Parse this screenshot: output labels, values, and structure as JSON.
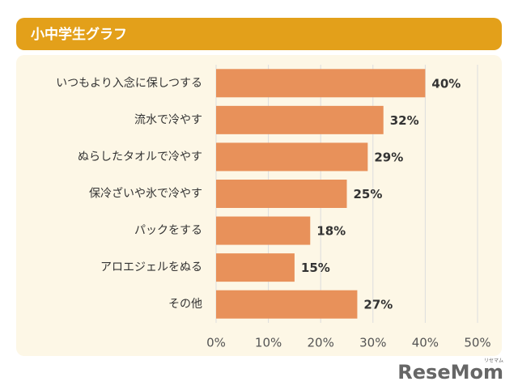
{
  "chart_data": {
    "type": "bar",
    "orientation": "horizontal",
    "title": "小中学生グラフ",
    "categories": [
      "いつもより入念に保しつする",
      "流水で冷やす",
      "ぬらしたタオルで冷やす",
      "保冷ざいや氷で冷やす",
      "パックをする",
      "アロエジェルをぬる",
      "その他"
    ],
    "values": [
      40,
      32,
      29,
      25,
      18,
      15,
      27
    ],
    "value_labels": [
      "40%",
      "32%",
      "29%",
      "25%",
      "18%",
      "15%",
      "27%"
    ],
    "color": "#e8915a",
    "xlim": [
      0,
      50
    ],
    "xticks": [
      {
        "value": 0,
        "label": "0%"
      },
      {
        "value": 10,
        "label": "10%"
      },
      {
        "value": 20,
        "label": "20%"
      },
      {
        "value": 30,
        "label": "30%"
      },
      {
        "value": 40,
        "label": "40%"
      },
      {
        "value": 50,
        "label": "50%"
      }
    ],
    "grid": true
  },
  "watermark": "ReseMom",
  "watermark_sub": "リセマム"
}
